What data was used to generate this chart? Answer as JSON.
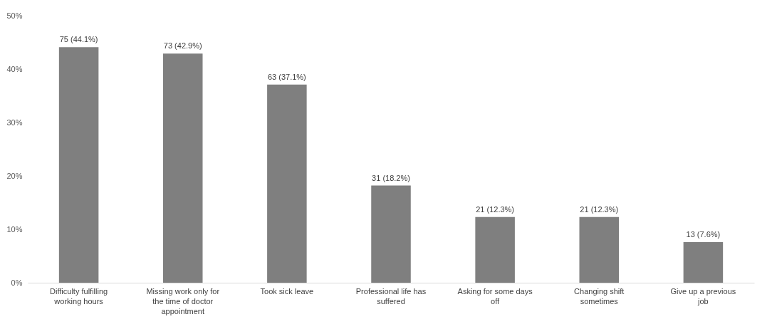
{
  "chart_data": {
    "type": "bar",
    "categories": [
      "Difficulty fulfilling working hours",
      "Missing work only for the time of doctor appointment",
      "Took sick leave",
      "Professional life has suffered",
      "Asking for some days off",
      "Changing shift sometimes",
      "Give up a previous job"
    ],
    "values": [
      44.1,
      42.9,
      37.1,
      18.2,
      12.3,
      12.3,
      7.6
    ],
    "value_labels": [
      "75 (44.1%)",
      "73 (42.9%)",
      "63 (37.1%)",
      "31 (18.2%)",
      "21 (12.3%)",
      "21 (12.3%)",
      "13 (7.6%)"
    ],
    "color": "#7f7f7f",
    "ylim": [
      0,
      50
    ],
    "yticks": [
      {
        "value": 0,
        "label": "0%"
      },
      {
        "value": 10,
        "label": "10%"
      },
      {
        "value": 20,
        "label": "20%"
      },
      {
        "value": 30,
        "label": "30%"
      },
      {
        "value": 40,
        "label": "40%"
      },
      {
        "value": 50,
        "label": "50%"
      }
    ],
    "grid": false
  }
}
